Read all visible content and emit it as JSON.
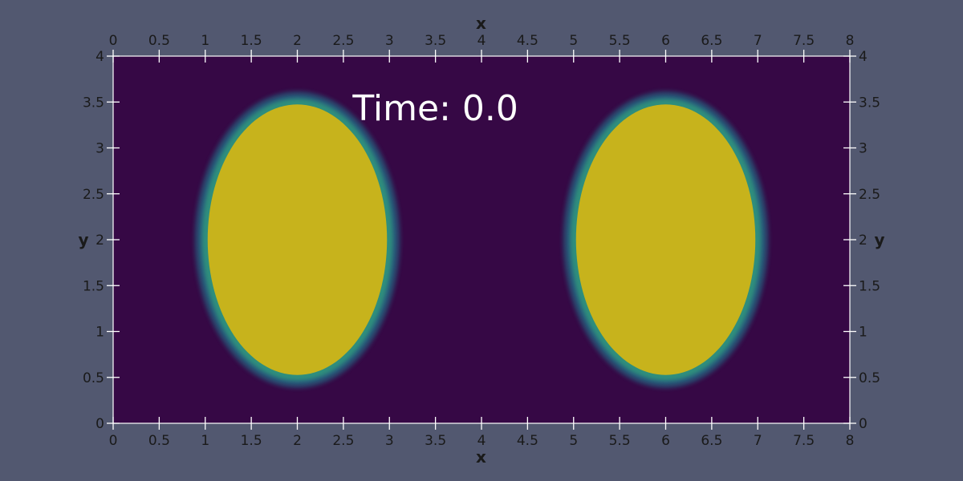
{
  "chart_data": {
    "type": "heatmap",
    "annotation": "Time: 0.0",
    "xlabel": "x",
    "ylabel": "y",
    "xlim": [
      0,
      8
    ],
    "ylim": [
      0,
      4
    ],
    "x_ticks": [
      "0",
      "0.5",
      "1",
      "1.5",
      "2",
      "2.5",
      "3",
      "3.5",
      "4",
      "4.5",
      "5",
      "5.5",
      "6",
      "6.5",
      "7",
      "7.5",
      "8"
    ],
    "y_ticks": [
      "0",
      "0.5",
      "1",
      "1.5",
      "2",
      "2.5",
      "3",
      "3.5",
      "4"
    ],
    "x_tick_values": [
      0,
      0.5,
      1,
      1.5,
      2,
      2.5,
      3,
      3.5,
      4,
      4.5,
      5,
      5.5,
      6,
      6.5,
      7,
      7.5,
      8
    ],
    "y_tick_values": [
      0,
      0.5,
      1,
      1.5,
      2,
      2.5,
      3,
      3.5,
      4
    ],
    "axes_on": [
      "top",
      "bottom",
      "left",
      "right"
    ],
    "grid": false,
    "colormap": "viridis",
    "background_value_color": "#360845",
    "regions": [
      {
        "shape": "ellipse",
        "center": [
          2.0,
          2.0
        ],
        "semi_axes": [
          1.0,
          1.5
        ],
        "edge": "smooth"
      },
      {
        "shape": "ellipse",
        "center": [
          6.0,
          2.0
        ],
        "semi_axes": [
          1.0,
          1.5
        ],
        "edge": "jagged"
      }
    ],
    "colors": {
      "high": "#c7b31c",
      "edge_mid": "#2d8e7d",
      "edge_outer": "#28617e",
      "low": "#360845",
      "axis": "#ffffff"
    }
  }
}
